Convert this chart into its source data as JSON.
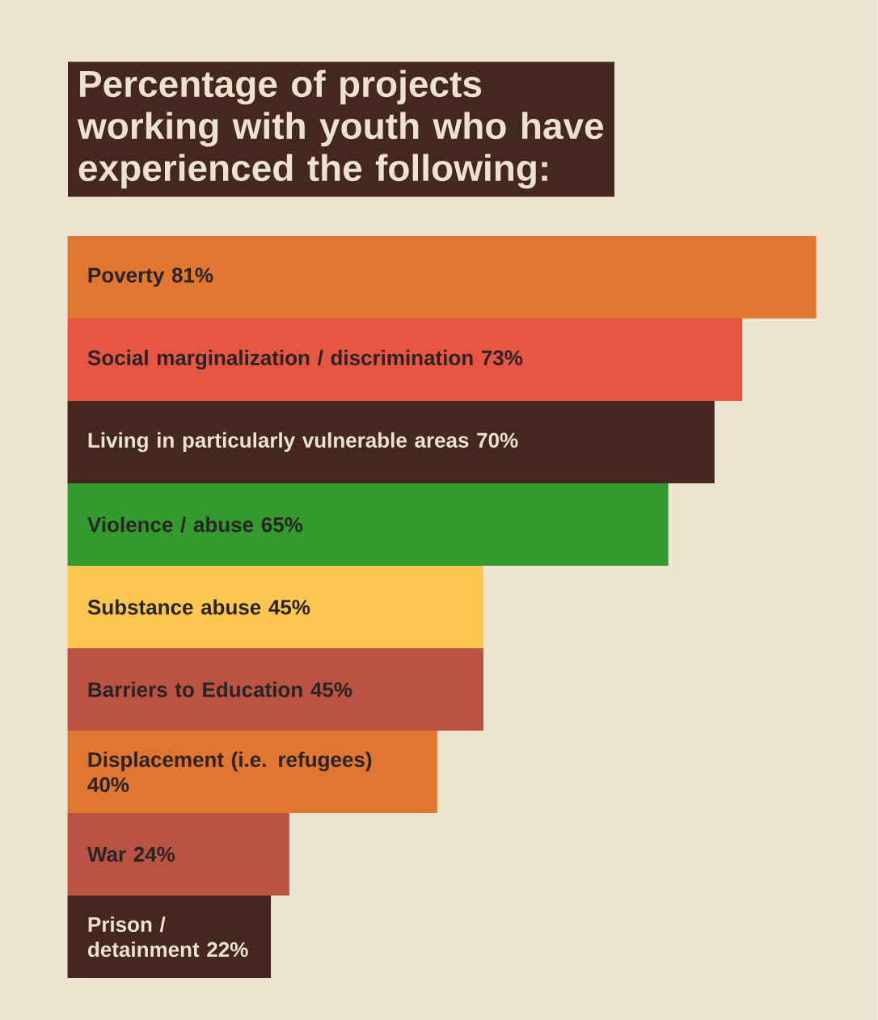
{
  "chart_data": {
    "type": "bar",
    "orientation": "horizontal",
    "title": "Percentage of projects working with youth who have experienced the following:",
    "categories": [
      "Poverty",
      "Social marginalization / discrimination",
      "Living in particularly vulnerable areas",
      "Violence / abuse",
      "Substance abuse",
      "Barriers to Education",
      "Displacement (i.e. refugees)",
      "War",
      "Prison / detainment"
    ],
    "values": [
      81,
      73,
      70,
      65,
      45,
      45,
      40,
      24,
      22
    ],
    "value_labels": [
      "81%",
      "73%",
      "70%",
      "65%",
      "45%",
      "45%",
      "40%",
      "24%",
      "22%"
    ],
    "colors": [
      "#e07630",
      "#e75543",
      "#44271f",
      "#339a2d",
      "#fdc74f",
      "#ba5343",
      "#e07630",
      "#ba5343",
      "#44271f"
    ]
  }
}
